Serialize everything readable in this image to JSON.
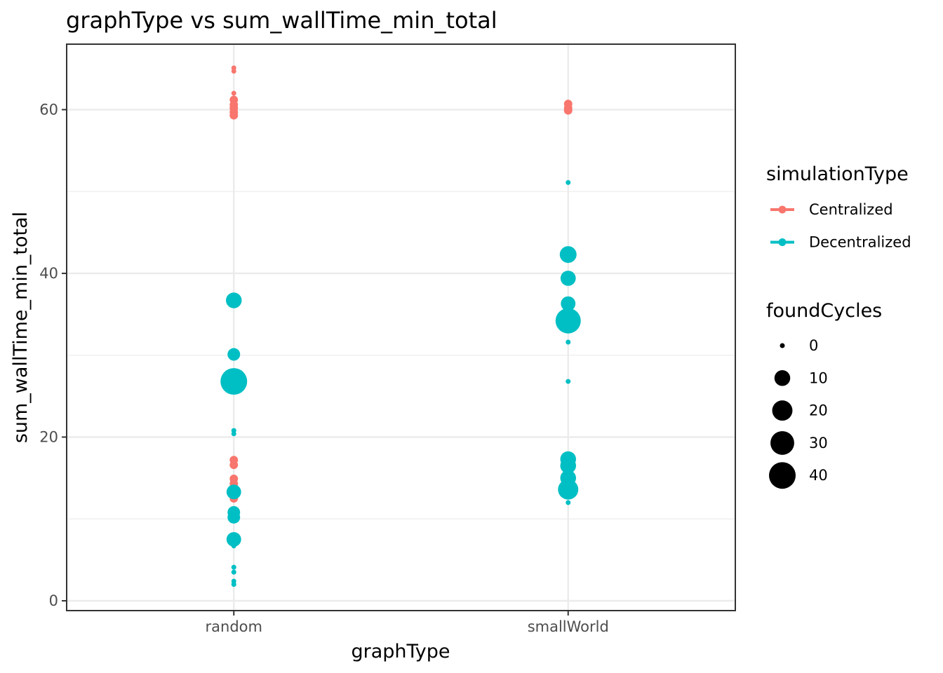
{
  "chart_data": {
    "type": "scatter",
    "title": "graphType  vs  sum_wallTime_min_total",
    "xlabel": "graphType",
    "ylabel": "sum_wallTime_min_total",
    "categories": [
      "random",
      "smallWorld"
    ],
    "ylim": [
      -1.2,
      68
    ],
    "yticks": [
      0,
      20,
      40,
      60
    ],
    "grid": true,
    "legend_position": "right",
    "color_legend": {
      "title": "simulationType",
      "entries": [
        {
          "name": "Centralized",
          "color": "#F8766D"
        },
        {
          "name": "Decentralized",
          "color": "#00BFC4"
        }
      ]
    },
    "size_legend": {
      "title": "foundCycles",
      "entries": [
        0,
        10,
        20,
        30,
        40
      ]
    },
    "size_range": [
      0,
      40
    ],
    "series": [
      {
        "name": "Centralized",
        "color": "#F8766D",
        "points": [
          {
            "x": "random",
            "y": 65.1,
            "size": 0
          },
          {
            "x": "random",
            "y": 64.7,
            "size": 0
          },
          {
            "x": "random",
            "y": 62.0,
            "size": 0
          },
          {
            "x": "random",
            "y": 61.2,
            "size": 1
          },
          {
            "x": "random",
            "y": 60.6,
            "size": 1
          },
          {
            "x": "random",
            "y": 60.2,
            "size": 1
          },
          {
            "x": "random",
            "y": 59.7,
            "size": 1
          },
          {
            "x": "random",
            "y": 59.3,
            "size": 1
          },
          {
            "x": "random",
            "y": 17.2,
            "size": 1
          },
          {
            "x": "random",
            "y": 16.6,
            "size": 1
          },
          {
            "x": "random",
            "y": 14.9,
            "size": 1
          },
          {
            "x": "random",
            "y": 14.3,
            "size": 1
          },
          {
            "x": "random",
            "y": 13.7,
            "size": 1
          },
          {
            "x": "random",
            "y": 13.1,
            "size": 1
          },
          {
            "x": "random",
            "y": 12.5,
            "size": 1
          },
          {
            "x": "smallWorld",
            "y": 60.7,
            "size": 1
          },
          {
            "x": "smallWorld",
            "y": 60.2,
            "size": 1
          },
          {
            "x": "smallWorld",
            "y": 59.9,
            "size": 1
          },
          {
            "x": "smallWorld",
            "y": 16.9,
            "size": 1
          },
          {
            "x": "smallWorld",
            "y": 13.1,
            "size": 1
          }
        ]
      },
      {
        "name": "Decentralized",
        "color": "#00BFC4",
        "points": [
          {
            "x": "random",
            "y": 36.7,
            "size": 10
          },
          {
            "x": "random",
            "y": 30.1,
            "size": 5
          },
          {
            "x": "random",
            "y": 26.8,
            "size": 40
          },
          {
            "x": "random",
            "y": 20.8,
            "size": 0
          },
          {
            "x": "random",
            "y": 20.4,
            "size": 0
          },
          {
            "x": "random",
            "y": 13.3,
            "size": 8
          },
          {
            "x": "random",
            "y": 10.8,
            "size": 5
          },
          {
            "x": "random",
            "y": 10.2,
            "size": 5
          },
          {
            "x": "random",
            "y": 7.5,
            "size": 8
          },
          {
            "x": "random",
            "y": 6.7,
            "size": 0
          },
          {
            "x": "random",
            "y": 4.1,
            "size": 0
          },
          {
            "x": "random",
            "y": 3.5,
            "size": 0
          },
          {
            "x": "random",
            "y": 2.4,
            "size": 0
          },
          {
            "x": "random",
            "y": 2.0,
            "size": 0
          },
          {
            "x": "smallWorld",
            "y": 51.1,
            "size": 0
          },
          {
            "x": "smallWorld",
            "y": 42.3,
            "size": 12
          },
          {
            "x": "smallWorld",
            "y": 39.4,
            "size": 9
          },
          {
            "x": "smallWorld",
            "y": 36.3,
            "size": 8
          },
          {
            "x": "smallWorld",
            "y": 34.2,
            "size": 35
          },
          {
            "x": "smallWorld",
            "y": 31.6,
            "size": 0
          },
          {
            "x": "smallWorld",
            "y": 26.8,
            "size": 0
          },
          {
            "x": "smallWorld",
            "y": 17.3,
            "size": 10
          },
          {
            "x": "smallWorld",
            "y": 16.5,
            "size": 10
          },
          {
            "x": "smallWorld",
            "y": 15.0,
            "size": 10
          },
          {
            "x": "smallWorld",
            "y": 13.6,
            "size": 20
          },
          {
            "x": "smallWorld",
            "y": 12.0,
            "size": 0
          }
        ]
      }
    ]
  }
}
